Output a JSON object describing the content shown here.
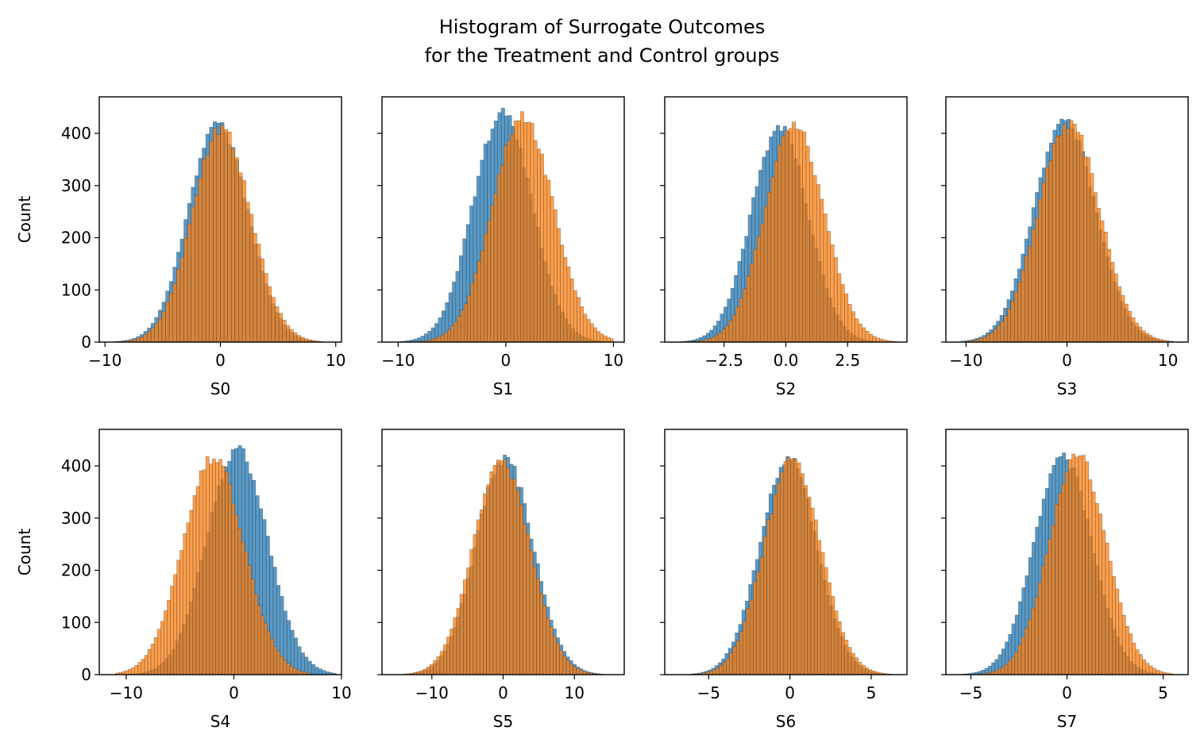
{
  "figure": {
    "title_lines": [
      "Histogram of Surrogate Outcomes",
      "for the Treatment and Control groups"
    ]
  },
  "colors": {
    "control": "#1f77b4",
    "treatment": "#ff7f0e",
    "edge": "#3a3a3a",
    "axes": "#000000"
  },
  "chart_data": [
    {
      "type": "bar",
      "subtype": "histogram",
      "xlabel": "S0",
      "ylabel": "Count",
      "xlim": [
        -10.5,
        10.5
      ],
      "ylim": [
        0,
        470
      ],
      "xticks": [
        -10,
        0,
        10
      ],
      "xtick_labels": [
        "−10",
        "0",
        "10"
      ],
      "yticks": [
        0,
        100,
        200,
        300,
        400
      ],
      "ytick_labels": [
        "0",
        "100",
        "200",
        "300",
        "400"
      ],
      "show_ytick_labels": true,
      "bins": 60,
      "series": [
        {
          "mean": -0.2,
          "sd": 2.55,
          "range": [
            -9.5,
            9.5
          ],
          "peak": 420,
          "color_key": "control"
        },
        {
          "mean": 0.1,
          "sd": 2.55,
          "range": [
            -9.5,
            9.5
          ],
          "peak": 410,
          "color_key": "treatment"
        }
      ]
    },
    {
      "type": "bar",
      "subtype": "histogram",
      "xlabel": "S1",
      "ylabel": "",
      "xlim": [
        -11.5,
        11
      ],
      "ylim": [
        0,
        470
      ],
      "xticks": [
        -10,
        0,
        10
      ],
      "xtick_labels": [
        "−10",
        "0",
        "10"
      ],
      "yticks": [
        0,
        100,
        200,
        300,
        400
      ],
      "ytick_labels": [
        "0",
        "100",
        "200",
        "300",
        "400"
      ],
      "show_ytick_labels": false,
      "bins": 60,
      "series": [
        {
          "mean": -0.3,
          "sd": 2.75,
          "range": [
            -10.5,
            9
          ],
          "peak": 440,
          "color_key": "control"
        },
        {
          "mean": 1.6,
          "sd": 2.85,
          "range": [
            -8.5,
            10
          ],
          "peak": 430,
          "color_key": "treatment"
        }
      ]
    },
    {
      "type": "bar",
      "subtype": "histogram",
      "xlabel": "S2",
      "ylabel": "",
      "xlim": [
        -4.9,
        4.9
      ],
      "ylim": [
        0,
        470
      ],
      "xticks": [
        -2.5,
        0,
        2.5
      ],
      "xtick_labels": [
        "−2.5",
        "0.0",
        "2.5"
      ],
      "yticks": [
        0,
        100,
        200,
        300,
        400
      ],
      "ytick_labels": [
        "0",
        "100",
        "200",
        "300",
        "400"
      ],
      "show_ytick_labels": false,
      "bins": 60,
      "series": [
        {
          "mean": -0.25,
          "sd": 1.15,
          "range": [
            -4.5,
            4
          ],
          "peak": 415,
          "color_key": "control"
        },
        {
          "mean": 0.35,
          "sd": 1.2,
          "range": [
            -4,
            4.5
          ],
          "peak": 415,
          "color_key": "treatment"
        }
      ]
    },
    {
      "type": "bar",
      "subtype": "histogram",
      "xlabel": "S3",
      "ylabel": "",
      "xlim": [
        -12,
        12
      ],
      "ylim": [
        0,
        470
      ],
      "xticks": [
        -10,
        0,
        10
      ],
      "xtick_labels": [
        "−10",
        "0",
        "10"
      ],
      "yticks": [
        0,
        100,
        200,
        300,
        400
      ],
      "ytick_labels": [
        "0",
        "100",
        "200",
        "300",
        "400"
      ],
      "show_ytick_labels": false,
      "bins": 60,
      "series": [
        {
          "mean": -0.2,
          "sd": 3.05,
          "range": [
            -10.5,
            10.5
          ],
          "peak": 425,
          "color_key": "control"
        },
        {
          "mean": 0.2,
          "sd": 3.05,
          "range": [
            -10,
            10.5
          ],
          "peak": 420,
          "color_key": "treatment"
        }
      ]
    },
    {
      "type": "bar",
      "subtype": "histogram",
      "xlabel": "S4",
      "ylabel": "Count",
      "xlim": [
        -12.5,
        10
      ],
      "ylim": [
        0,
        470
      ],
      "xticks": [
        -10,
        0,
        10
      ],
      "xtick_labels": [
        "−10",
        "0",
        "10"
      ],
      "yticks": [
        0,
        100,
        200,
        300,
        400
      ],
      "ytick_labels": [
        "0",
        "100",
        "200",
        "300",
        "400"
      ],
      "show_ytick_labels": true,
      "bins": 60,
      "series": [
        {
          "mean": 0.3,
          "sd": 2.85,
          "range": [
            -10,
            9.5
          ],
          "peak": 430,
          "color_key": "control"
        },
        {
          "mean": -1.9,
          "sd": 2.85,
          "range": [
            -11,
            7
          ],
          "peak": 415,
          "color_key": "treatment"
        }
      ]
    },
    {
      "type": "bar",
      "subtype": "histogram",
      "xlabel": "S5",
      "ylabel": "",
      "xlim": [
        -17,
        17
      ],
      "ylim": [
        0,
        470
      ],
      "xticks": [
        -10,
        0,
        10
      ],
      "xtick_labels": [
        "−10",
        "0",
        "10"
      ],
      "yticks": [
        0,
        100,
        200,
        300,
        400
      ],
      "ytick_labels": [
        "0",
        "100",
        "200",
        "300",
        "400"
      ],
      "show_ytick_labels": false,
      "bins": 60,
      "series": [
        {
          "mean": 0.2,
          "sd": 4.0,
          "range": [
            -14,
            14
          ],
          "peak": 415,
          "color_key": "control"
        },
        {
          "mean": -0.2,
          "sd": 4.0,
          "range": [
            -14,
            14
          ],
          "peak": 410,
          "color_key": "treatment"
        }
      ]
    },
    {
      "type": "bar",
      "subtype": "histogram",
      "xlabel": "S6",
      "ylabel": "",
      "xlim": [
        -7.7,
        7.2
      ],
      "ylim": [
        0,
        470
      ],
      "xticks": [
        -5,
        0,
        5
      ],
      "xtick_labels": [
        "−5",
        "0",
        "5"
      ],
      "yticks": [
        0,
        100,
        200,
        300,
        400
      ],
      "ytick_labels": [
        "0",
        "100",
        "200",
        "300",
        "400"
      ],
      "show_ytick_labels": false,
      "bins": 60,
      "series": [
        {
          "mean": -0.1,
          "sd": 1.75,
          "range": [
            -6.5,
            6
          ],
          "peak": 415,
          "color_key": "control"
        },
        {
          "mean": 0.15,
          "sd": 1.75,
          "range": [
            -6,
            6.5
          ],
          "peak": 410,
          "color_key": "treatment"
        }
      ]
    },
    {
      "type": "bar",
      "subtype": "histogram",
      "xlabel": "S7",
      "ylabel": "",
      "xlim": [
        -6.3,
        6.3
      ],
      "ylim": [
        0,
        470
      ],
      "xticks": [
        -5,
        0,
        5
      ],
      "xtick_labels": [
        "−5",
        "0",
        "5"
      ],
      "yticks": [
        0,
        100,
        200,
        300,
        400
      ],
      "ytick_labels": [
        "0",
        "100",
        "200",
        "300",
        "400"
      ],
      "show_ytick_labels": false,
      "bins": 60,
      "series": [
        {
          "mean": -0.2,
          "sd": 1.5,
          "range": [
            -5.5,
            5
          ],
          "peak": 420,
          "color_key": "control"
        },
        {
          "mean": 0.55,
          "sd": 1.5,
          "range": [
            -5,
            5.5
          ],
          "peak": 420,
          "color_key": "treatment"
        }
      ]
    }
  ]
}
